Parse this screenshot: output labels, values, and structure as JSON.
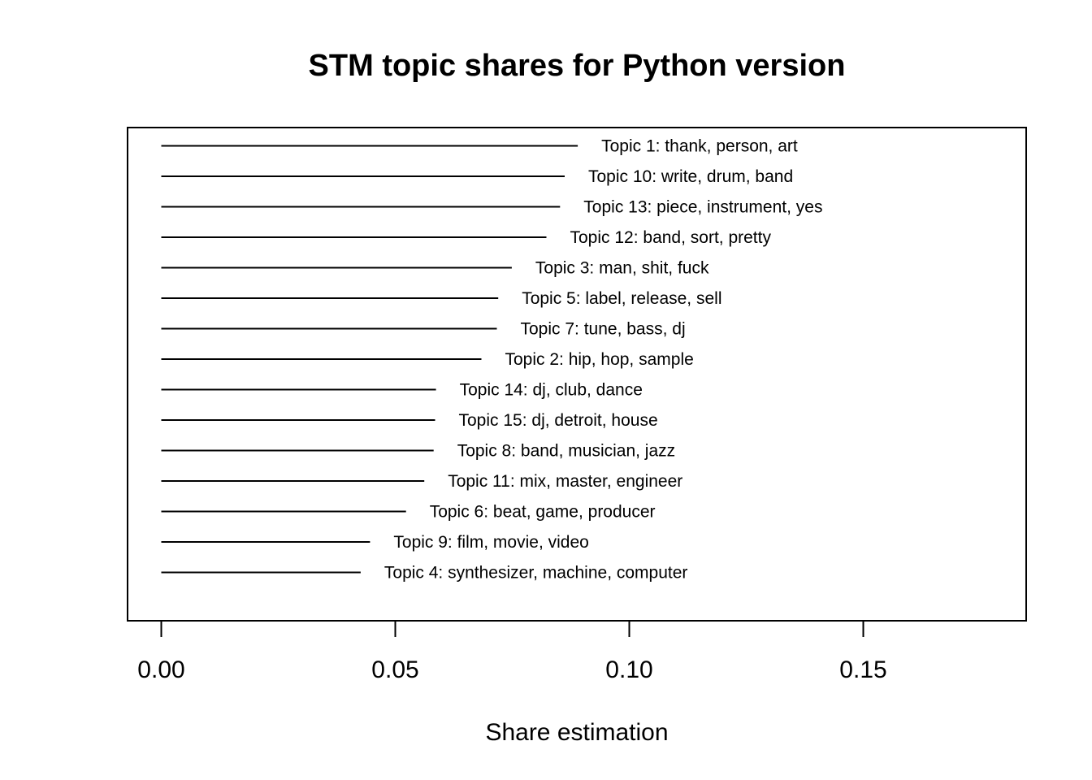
{
  "chart_data": {
    "type": "bar",
    "orientation": "horizontal",
    "title": "STM topic shares for Python version",
    "xlabel": "Share estimation",
    "ylabel": "",
    "xlim": [
      0,
      0.18
    ],
    "xticks": [
      0.0,
      0.05,
      0.1,
      0.15
    ],
    "xtick_labels": [
      "0.00",
      "0.05",
      "0.10",
      "0.15"
    ],
    "grid": false,
    "legend": "none",
    "series": [
      {
        "categories": [
          "Topic 1: thank, person, art",
          "Topic 10: write, drum, band",
          "Topic 13: piece, instrument, yes",
          "Topic 12: band, sort, pretty",
          "Topic 3: man, shit, fuck",
          "Topic 5: label, release, sell",
          "Topic 7: tune, bass, dj",
          "Topic 2: hip, hop, sample",
          "Topic 14: dj, club, dance",
          "Topic 15: dj, detroit, house",
          "Topic 8: band, musician, jazz",
          "Topic 11: mix, master, engineer",
          "Topic 6: beat, game, producer",
          "Topic 9: film, movie, video",
          "Topic 4: synthesizer, machine, computer"
        ],
        "values": [
          0.089,
          0.0862,
          0.0852,
          0.0823,
          0.0749,
          0.072,
          0.0717,
          0.0684,
          0.0587,
          0.0585,
          0.0582,
          0.0562,
          0.0523,
          0.0446,
          0.0426
        ]
      }
    ],
    "colors": {
      "line": "#000000",
      "background": "#ffffff"
    }
  }
}
